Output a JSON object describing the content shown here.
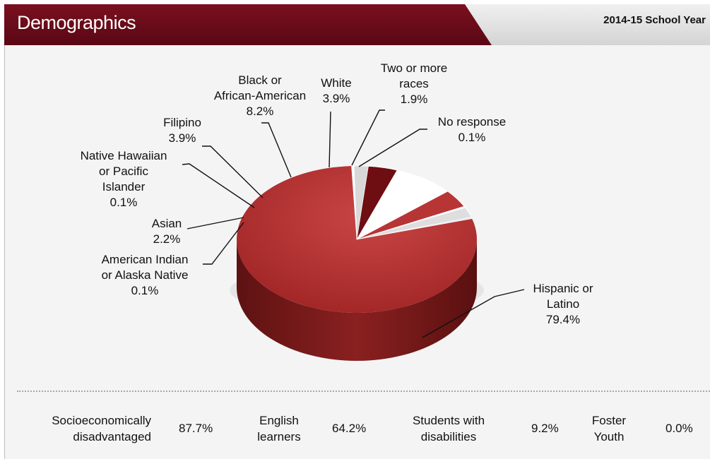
{
  "header": {
    "title": "Demographics",
    "year": "2014-15 School Year"
  },
  "colors": {
    "maroon": "#6a0b19",
    "slice_red": "#b83535",
    "slice_white": "#ffffff",
    "slice_gray": "#d8d8d8",
    "slice_dark": "#6e0d12"
  },
  "chart_data": {
    "type": "pie",
    "style": "3d",
    "slices": [
      {
        "label": "Hispanic or Latino",
        "value": 79.4,
        "value_text": "79.4%",
        "lines": [
          "Hispanic or",
          "Latino",
          "79.4%"
        ],
        "color": "#b83535"
      },
      {
        "label": "American Indian or Alaska Native",
        "value": 0.1,
        "value_text": "0.1%",
        "lines": [
          "American Indian",
          "or Alaska Native",
          "0.1%"
        ],
        "color": "#e8e8e8"
      },
      {
        "label": "Asian",
        "value": 2.2,
        "value_text": "2.2%",
        "lines": [
          "Asian",
          "2.2%"
        ],
        "color": "#dedede"
      },
      {
        "label": "Native Hawaiian or Pacific Islander",
        "value": 0.1,
        "value_text": "0.1%",
        "lines": [
          "Native Hawaiian",
          "or Pacific",
          "Islander",
          "0.1%"
        ],
        "color": "#ffffff"
      },
      {
        "label": "Filipino",
        "value": 3.9,
        "value_text": "3.9%",
        "lines": [
          "Filipino",
          "3.9%"
        ],
        "color": "#b83535"
      },
      {
        "label": "Black or African-American",
        "value": 8.2,
        "value_text": "8.2%",
        "lines": [
          "Black or",
          "African-American",
          "8.2%"
        ],
        "color": "#ffffff"
      },
      {
        "label": "White",
        "value": 3.9,
        "value_text": "3.9%",
        "lines": [
          "White",
          "3.9%"
        ],
        "color": "#6e0d12"
      },
      {
        "label": "Two or more races",
        "value": 1.9,
        "value_text": "1.9%",
        "lines": [
          "Two or more",
          "races",
          "1.9%"
        ],
        "color": "#d8d8d8"
      },
      {
        "label": "No response",
        "value": 0.1,
        "value_text": "0.1%",
        "lines": [
          "No response",
          "0.1%"
        ],
        "color": "#ffffff"
      }
    ]
  },
  "stats": [
    {
      "label_lines": [
        "Socioeconomically",
        "disadvantaged"
      ],
      "value": "87.7%"
    },
    {
      "label_lines": [
        "English",
        "learners"
      ],
      "value": "64.2%"
    },
    {
      "label_lines": [
        "Students with",
        "disabilities"
      ],
      "value": "9.2%"
    },
    {
      "label_lines": [
        "Foster",
        "Youth"
      ],
      "value": "0.0%"
    }
  ]
}
